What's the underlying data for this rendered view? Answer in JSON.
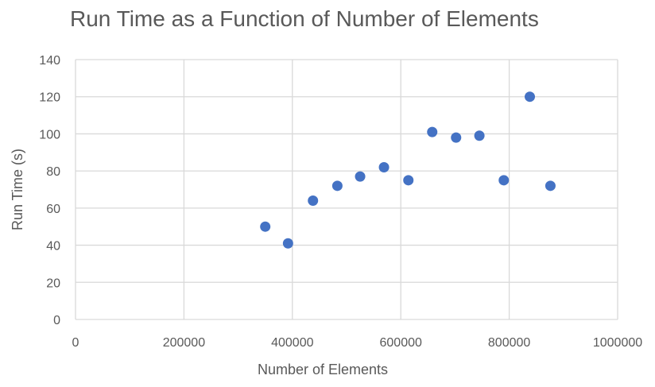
{
  "chart_data": {
    "type": "scatter",
    "title": "Run Time as a Function of Number of Elements",
    "xlabel": "Number of Elements",
    "ylabel": "Run Time (s)",
    "xlim": [
      0,
      1000000
    ],
    "ylim": [
      0,
      140
    ],
    "xticks": [
      0,
      200000,
      400000,
      600000,
      800000,
      1000000
    ],
    "yticks": [
      0,
      20,
      40,
      60,
      80,
      100,
      120,
      140
    ],
    "xtick_labels": [
      "0",
      "200000",
      "400000",
      "600000",
      "800000",
      "1000000"
    ],
    "ytick_labels": [
      "0",
      "20",
      "40",
      "60",
      "80",
      "100",
      "120",
      "140"
    ],
    "grid": true,
    "legend": "none",
    "marker_color": "#4472C4",
    "series": [
      {
        "points": [
          {
            "x": 350000,
            "y": 50
          },
          {
            "x": 392000,
            "y": 41
          },
          {
            "x": 438000,
            "y": 64
          },
          {
            "x": 483000,
            "y": 72
          },
          {
            "x": 525000,
            "y": 77
          },
          {
            "x": 569000,
            "y": 82
          },
          {
            "x": 614000,
            "y": 75
          },
          {
            "x": 658000,
            "y": 101
          },
          {
            "x": 702000,
            "y": 98
          },
          {
            "x": 745000,
            "y": 99
          },
          {
            "x": 790000,
            "y": 75
          },
          {
            "x": 838000,
            "y": 120
          },
          {
            "x": 876000,
            "y": 72
          }
        ]
      }
    ]
  }
}
